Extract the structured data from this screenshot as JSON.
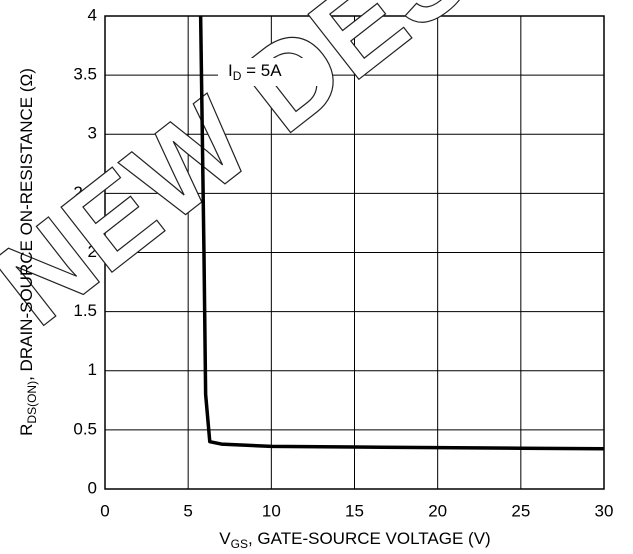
{
  "chart_data": {
    "type": "line",
    "watermark": "NEW DESIGN",
    "annotation": {
      "main": "I",
      "sub": "D",
      "rest": " = 5A"
    },
    "xlabel": {
      "main": "V",
      "sub": "GS",
      "rest": ", GATE-SOURCE VOLTAGE (V)"
    },
    "ylabel": {
      "main": "R",
      "sub": "DS(ON)",
      "rest": ", DRAIN-SOURCE ON-RESISTANCE (Ω)"
    },
    "x": [
      5.75,
      5.85,
      5.95,
      6.05,
      6.3,
      7,
      10,
      15,
      20,
      25,
      30
    ],
    "series": [
      {
        "color": "#000000",
        "values": [
          4,
          3,
          2,
          0.8,
          0.4,
          0.38,
          0.36,
          0.355,
          0.35,
          0.345,
          0.34
        ]
      }
    ],
    "xlim": [
      0,
      30
    ],
    "xticks": [
      0,
      5,
      10,
      15,
      20,
      25,
      30
    ],
    "ylim": [
      0,
      4
    ],
    "yticks": [
      0,
      0.5,
      1,
      1.5,
      2,
      2.5,
      3,
      3.5,
      4
    ],
    "grid": true
  }
}
